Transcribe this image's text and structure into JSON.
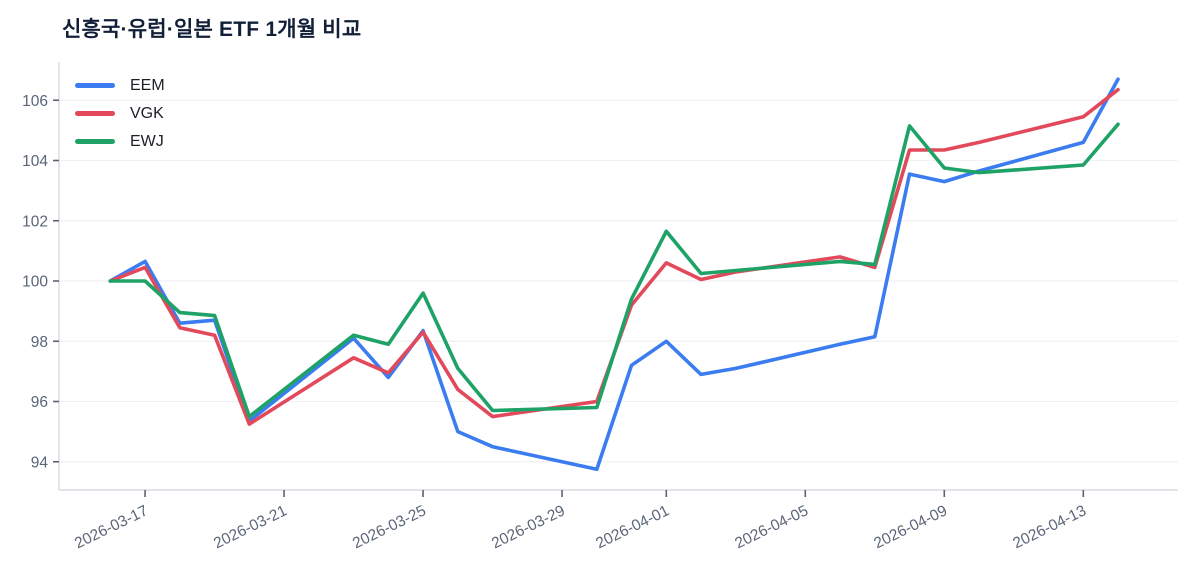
{
  "title": "신흥국·유럽·일본 ETF 1개월 비교",
  "chart_data": {
    "type": "line",
    "title": "신흥국·유럽·일본 ETF 1개월 비교",
    "x": [
      "2026-03-16",
      "2026-03-17",
      "2026-03-18",
      "2026-03-19",
      "2026-03-20",
      "2026-03-23",
      "2026-03-24",
      "2026-03-25",
      "2026-03-26",
      "2026-03-27",
      "2026-03-30",
      "2026-03-31",
      "2026-04-01",
      "2026-04-02",
      "2026-04-03",
      "2026-04-06",
      "2026-04-07",
      "2026-04-08",
      "2026-04-09",
      "2026-04-10",
      "2026-04-13",
      "2026-04-14"
    ],
    "series": [
      {
        "name": "EEM",
        "color": "#3b7df0",
        "values": [
          100.0,
          100.65,
          98.6,
          98.7,
          95.35,
          98.1,
          96.8,
          98.35,
          95.0,
          94.5,
          93.75,
          97.2,
          98.0,
          96.9,
          97.1,
          97.9,
          98.15,
          103.55,
          103.3,
          103.65,
          104.6,
          106.7
        ]
      },
      {
        "name": "VGK",
        "color": "#e2495a",
        "values": [
          100.0,
          100.45,
          98.45,
          98.2,
          95.25,
          97.45,
          96.95,
          98.3,
          96.4,
          95.5,
          96.0,
          99.2,
          100.6,
          100.05,
          100.3,
          100.8,
          100.45,
          104.35,
          104.35,
          104.6,
          105.45,
          106.35
        ]
      },
      {
        "name": "EWJ",
        "color": "#1ea266",
        "values": [
          100.0,
          100.0,
          98.95,
          98.85,
          95.5,
          98.2,
          97.9,
          99.6,
          97.1,
          95.7,
          95.8,
          99.4,
          101.65,
          100.25,
          100.35,
          100.65,
          100.55,
          105.15,
          103.75,
          103.6,
          103.85,
          105.2
        ]
      }
    ],
    "xticks": [
      "2026-03-17",
      "2026-03-21",
      "2026-03-25",
      "2026-03-29",
      "2026-04-01",
      "2026-04-05",
      "2026-04-09",
      "2026-04-13"
    ],
    "yticks": [
      94,
      96,
      98,
      100,
      102,
      104,
      106
    ],
    "ylim": [
      93.1,
      107.3
    ],
    "grid": "horizontal-only",
    "legend_position": "top-left",
    "line_width": 3.6,
    "colors": {
      "grid": "#f0f1f4",
      "axis": "#d8dce2",
      "tick_mark": "#5b6470",
      "tick_label": "#5a6578",
      "legend_label": "#1b1f27",
      "title": "#121f38",
      "background": "#ffffff"
    }
  }
}
